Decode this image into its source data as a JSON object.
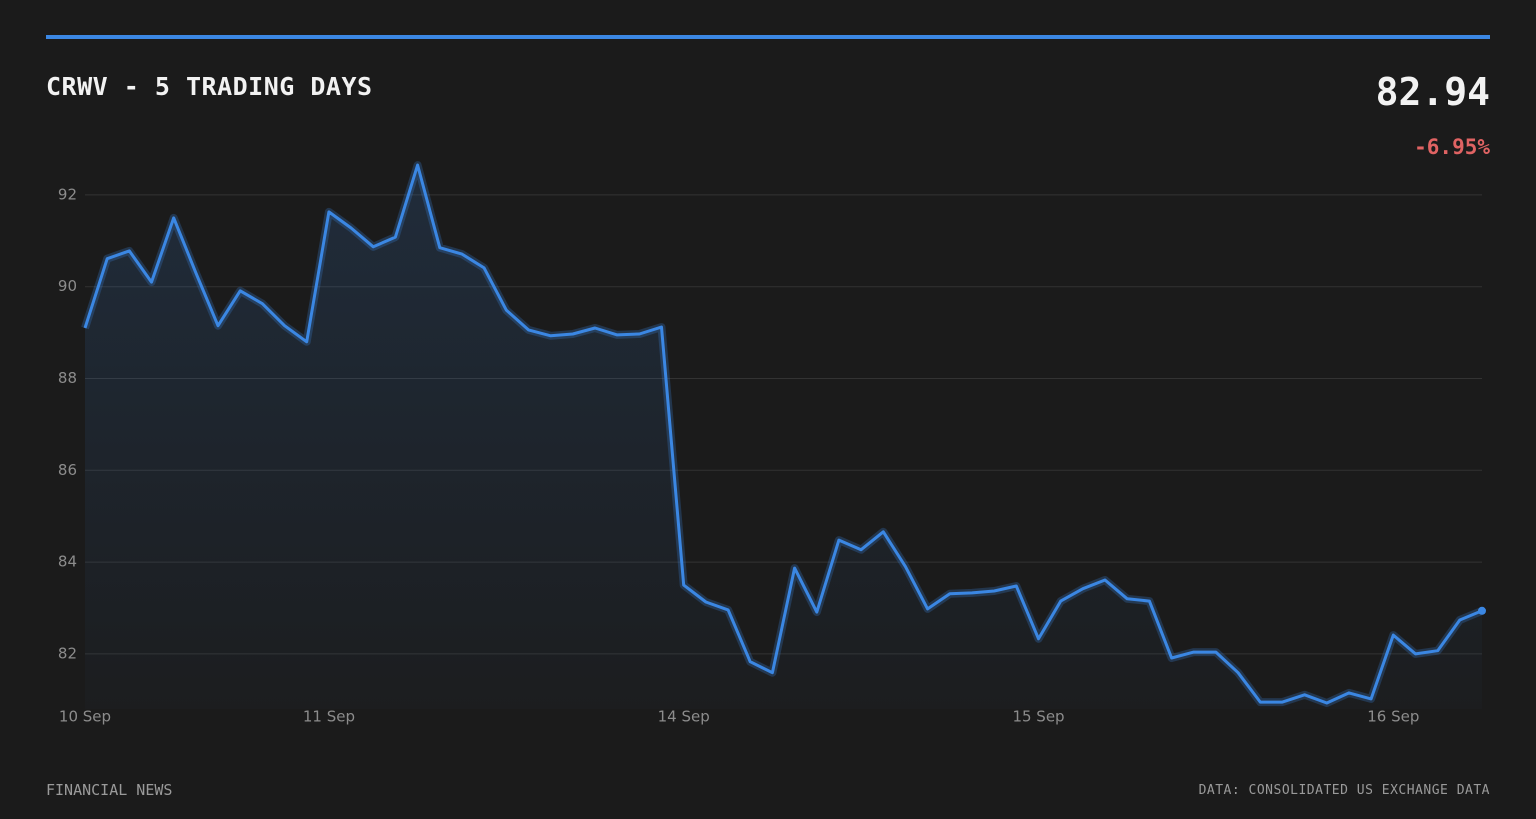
{
  "header": {
    "title": "CRWV - 5 TRADING DAYS",
    "price": "82.94",
    "change": "-6.95%"
  },
  "chart_data": {
    "type": "line",
    "color": "#3b87e3",
    "grid": true,
    "categories": [
      "10 Sep",
      null,
      null,
      null,
      null,
      null,
      null,
      null,
      null,
      null,
      null,
      "11 Sep",
      null,
      null,
      null,
      null,
      null,
      null,
      null,
      null,
      null,
      null,
      null,
      null,
      null,
      null,
      null,
      "14 Sep",
      null,
      null,
      null,
      null,
      null,
      null,
      null,
      null,
      null,
      null,
      null,
      null,
      null,
      null,
      null,
      "15 Sep",
      null,
      null,
      null,
      null,
      null,
      null,
      null,
      null,
      null,
      null,
      null,
      null,
      null,
      null,
      null,
      "16 Sep",
      null,
      null,
      null,
      null
    ],
    "values": [
      89.1,
      90.61,
      90.78,
      90.1,
      91.5,
      90.3,
      89.15,
      89.91,
      89.63,
      89.15,
      88.8,
      91.63,
      91.28,
      90.87,
      91.08,
      92.65,
      90.85,
      90.71,
      90.41,
      89.49,
      89.06,
      88.93,
      88.97,
      89.1,
      88.95,
      88.97,
      89.12,
      83.5,
      83.13,
      82.96,
      81.83,
      81.59,
      83.87,
      82.91,
      84.48,
      84.27,
      84.66,
      83.9,
      82.98,
      83.31,
      83.33,
      83.37,
      83.48,
      82.33,
      83.15,
      83.42,
      83.61,
      83.2,
      83.15,
      81.91,
      82.04,
      82.04,
      81.59,
      80.95,
      80.95,
      81.11,
      80.93,
      81.15,
      81.02,
      82.41,
      82.0,
      82.07,
      82.74,
      82.94
    ],
    "ylim": [
      80.8,
      93
    ],
    "yticks": [
      82,
      84,
      86,
      88,
      90,
      92
    ]
  },
  "footer": {
    "left": "FINANCIAL NEWS",
    "right": "DATA: CONSOLIDATED US EXCHANGE DATA"
  }
}
